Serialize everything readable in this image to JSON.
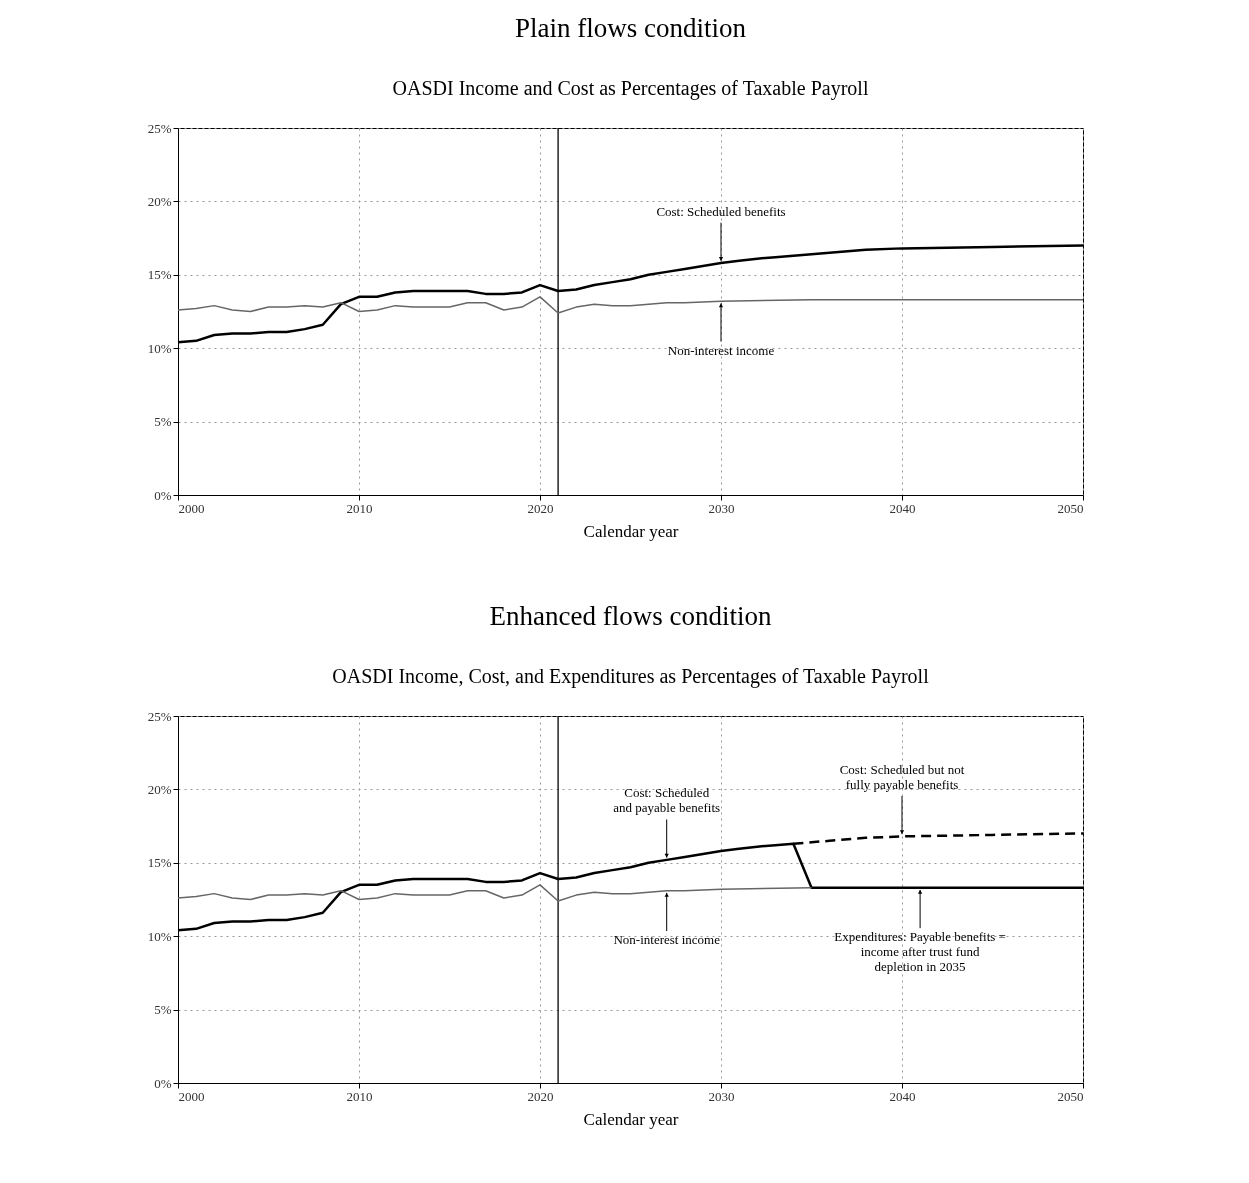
{
  "chart_data": [
    {
      "type": "line",
      "title": "Plain flows condition",
      "subtitle": "OASDI Income and Cost as Percentages of Taxable Payroll",
      "xlabel": "Calendar year",
      "series": [
        {
          "color": "#000000",
          "x": [
            2000,
            2001,
            2002,
            2003,
            2004,
            2005,
            2006,
            2007,
            2008,
            2009,
            2010,
            2011,
            2012,
            2013,
            2014,
            2015,
            2016,
            2017,
            2018,
            2019,
            2020,
            2021,
            2022,
            2023,
            2024,
            2025,
            2026,
            2027,
            2028,
            2029,
            2030,
            2031,
            2032,
            2033,
            2034,
            2035,
            2036,
            2038,
            2040,
            2045,
            2050
          ],
          "values": [
            10.4,
            10.5,
            10.9,
            11.0,
            11.0,
            11.1,
            11.1,
            11.3,
            11.6,
            13.0,
            13.5,
            13.5,
            13.8,
            13.9,
            13.9,
            13.9,
            13.9,
            13.7,
            13.7,
            13.8,
            14.3,
            13.9,
            14.0,
            14.3,
            14.5,
            14.7,
            15.0,
            15.2,
            15.4,
            15.6,
            15.8,
            15.95,
            16.1,
            16.2,
            16.3,
            16.4,
            16.5,
            16.7,
            16.8,
            16.9,
            17.0
          ]
        },
        {
          "color": "#666666",
          "x": [
            2000,
            2001,
            2002,
            2003,
            2004,
            2005,
            2006,
            2007,
            2008,
            2009,
            2010,
            2011,
            2012,
            2013,
            2014,
            2015,
            2016,
            2017,
            2018,
            2019,
            2020,
            2021,
            2022,
            2023,
            2024,
            2025,
            2026,
            2027,
            2028,
            2030,
            2035,
            2040,
            2050
          ],
          "values": [
            12.6,
            12.7,
            12.9,
            12.6,
            12.5,
            12.8,
            12.8,
            12.9,
            12.8,
            13.1,
            12.5,
            12.6,
            12.9,
            12.8,
            12.8,
            12.8,
            13.1,
            13.1,
            12.6,
            12.8,
            13.5,
            12.4,
            12.8,
            13.0,
            12.9,
            12.9,
            13.0,
            13.1,
            13.1,
            13.2,
            13.3,
            13.3,
            13.3
          ]
        }
      ],
      "annotations": [
        {
          "text": "Cost: Scheduled benefits",
          "x": 2030,
          "y": 15.8
        },
        {
          "text": "Non-interest income",
          "x": 2030,
          "y": 13.2
        }
      ],
      "ref_lines": [
        {
          "axis": "x",
          "value": 2021,
          "color": "#000000"
        }
      ],
      "xlim": [
        2000,
        2050
      ],
      "xticks": [
        2000,
        2010,
        2020,
        2030,
        2040,
        2050
      ],
      "ylim": [
        0,
        25
      ],
      "yticks": [
        {
          "value": 0,
          "label": "0%"
        },
        {
          "value": 5,
          "label": "5%"
        },
        {
          "value": 10,
          "label": "10%"
        },
        {
          "value": 15,
          "label": "15%"
        },
        {
          "value": 20,
          "label": "20%"
        },
        {
          "value": 25,
          "label": "25%"
        }
      ],
      "grid": true
    },
    {
      "type": "line",
      "title": "Enhanced flows condition",
      "subtitle": "OASDI Income, Cost, and Expenditures as Percentages of Taxable Payroll",
      "xlabel": "Calendar year",
      "series": [
        {
          "color": "#000000",
          "x": [
            2000,
            2001,
            2002,
            2003,
            2004,
            2005,
            2006,
            2007,
            2008,
            2009,
            2010,
            2011,
            2012,
            2013,
            2014,
            2015,
            2016,
            2017,
            2018,
            2019,
            2020,
            2021,
            2022,
            2023,
            2024,
            2025,
            2026,
            2027,
            2028,
            2029,
            2030,
            2031,
            2032,
            2033,
            2034,
            2035,
            2040,
            2045,
            2050
          ],
          "values": [
            10.4,
            10.5,
            10.9,
            11.0,
            11.0,
            11.1,
            11.1,
            11.3,
            11.6,
            13.0,
            13.5,
            13.5,
            13.8,
            13.9,
            13.9,
            13.9,
            13.9,
            13.7,
            13.7,
            13.8,
            14.3,
            13.9,
            14.0,
            14.3,
            14.5,
            14.7,
            15.0,
            15.2,
            15.4,
            15.6,
            15.8,
            15.95,
            16.1,
            16.2,
            16.3,
            13.3,
            13.3,
            13.3,
            13.3
          ]
        },
        {
          "color": "#000000",
          "line_style": "dashed",
          "x": [
            2034,
            2035,
            2036,
            2038,
            2040,
            2045,
            2050
          ],
          "values": [
            16.3,
            16.4,
            16.5,
            16.7,
            16.8,
            16.9,
            17.0
          ]
        },
        {
          "color": "#666666",
          "x": [
            2000,
            2001,
            2002,
            2003,
            2004,
            2005,
            2006,
            2007,
            2008,
            2009,
            2010,
            2011,
            2012,
            2013,
            2014,
            2015,
            2016,
            2017,
            2018,
            2019,
            2020,
            2021,
            2022,
            2023,
            2024,
            2025,
            2026,
            2027,
            2028,
            2030,
            2035
          ],
          "values": [
            12.6,
            12.7,
            12.9,
            12.6,
            12.5,
            12.8,
            12.8,
            12.9,
            12.8,
            13.1,
            12.5,
            12.6,
            12.9,
            12.8,
            12.8,
            12.8,
            13.1,
            13.1,
            12.6,
            12.8,
            13.5,
            12.4,
            12.8,
            13.0,
            12.9,
            12.9,
            13.0,
            13.1,
            13.1,
            13.2,
            13.3
          ]
        }
      ],
      "annotations": [
        {
          "text": "Cost: Scheduled\nand payable benefits",
          "x": 2027,
          "y": 15.2
        },
        {
          "text": "Non-interest income",
          "x": 2027,
          "y": 13.1
        },
        {
          "text": "Cost: Scheduled but not\nfully payable benefits",
          "x": 2040,
          "y": 16.8
        },
        {
          "text": "Expenditures: Payable benefits =\nincome after trust fund\ndepletion in 2035",
          "x": 2041,
          "y": 13.3
        }
      ],
      "ref_lines": [
        {
          "axis": "x",
          "value": 2021,
          "color": "#000000"
        }
      ],
      "xlim": [
        2000,
        2050
      ],
      "xticks": [
        2000,
        2010,
        2020,
        2030,
        2040,
        2050
      ],
      "ylim": [
        0,
        25
      ],
      "yticks": [
        {
          "value": 0,
          "label": "0%"
        },
        {
          "value": 5,
          "label": "5%"
        },
        {
          "value": 10,
          "label": "10%"
        },
        {
          "value": 15,
          "label": "15%"
        },
        {
          "value": 20,
          "label": "20%"
        },
        {
          "value": 25,
          "label": "25%"
        }
      ],
      "grid": true
    }
  ]
}
